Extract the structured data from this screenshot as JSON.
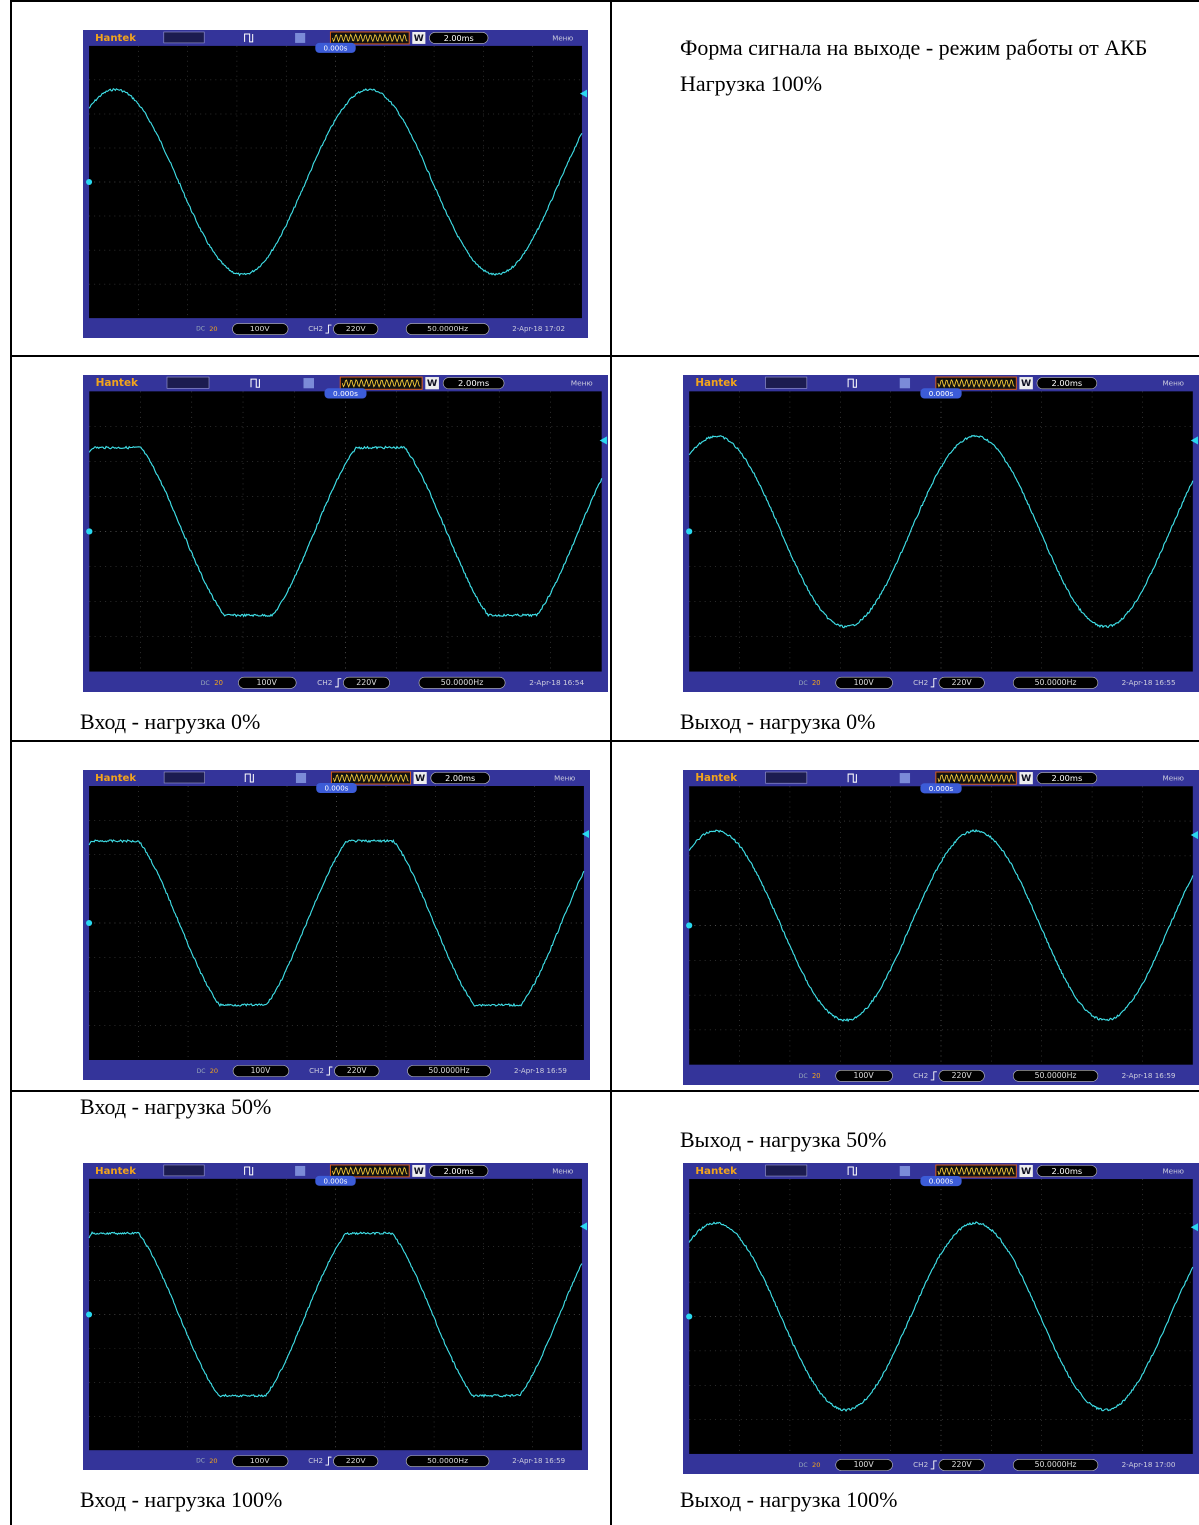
{
  "intro": {
    "lines": [
      "Форма сигнала на выходе - режим работы от АКБ",
      "Нагрузка 100%"
    ]
  },
  "scopes": [
    {
      "brand": "Hantek",
      "mode": "W",
      "timebase": "2.00ms",
      "menu": "Меню",
      "trigger_time": "0.000s",
      "coupling": "DC",
      "bandwidth": "20",
      "ch1_scale": "100V",
      "trigger_channel": "CH2",
      "trigger_level": "220V",
      "frequency": "50.0000Hz",
      "timestamp": "2-Apr-18 17:02"
    },
    {
      "brand": "Hantek",
      "mode": "W",
      "timebase": "2.00ms",
      "menu": "Меню",
      "trigger_time": "0.000s",
      "coupling": "DC",
      "bandwidth": "20",
      "ch1_scale": "100V",
      "trigger_channel": "CH2",
      "trigger_level": "220V",
      "frequency": "50.0000Hz",
      "timestamp": "2-Apr-18 16:54",
      "caption": "Вход - нагрузка 0%"
    },
    {
      "brand": "Hantek",
      "mode": "W",
      "timebase": "2.00ms",
      "menu": "Меню",
      "trigger_time": "0.000s",
      "coupling": "DC",
      "bandwidth": "20",
      "ch1_scale": "100V",
      "trigger_channel": "CH2",
      "trigger_level": "220V",
      "frequency": "50.0000Hz",
      "timestamp": "2-Apr-18 16:55",
      "caption": "Выход - нагрузка 0%"
    },
    {
      "brand": "Hantek",
      "mode": "W",
      "timebase": "2.00ms",
      "menu": "Меню",
      "trigger_time": "0.000s",
      "coupling": "DC",
      "bandwidth": "20",
      "ch1_scale": "100V",
      "trigger_channel": "CH2",
      "trigger_level": "220V",
      "frequency": "50.0000Hz",
      "timestamp": "2-Apr-18 16:59",
      "caption": "Вход - нагрузка 50%"
    },
    {
      "brand": "Hantek",
      "mode": "W",
      "timebase": "2.00ms",
      "menu": "Меню",
      "trigger_time": "0.000s",
      "coupling": "DC",
      "bandwidth": "20",
      "ch1_scale": "100V",
      "trigger_channel": "CH2",
      "trigger_level": "220V",
      "frequency": "50.0000Hz",
      "timestamp": "2-Apr-18 16:59",
      "caption": "Выход - нагрузка 50%"
    },
    {
      "brand": "Hantek",
      "mode": "W",
      "timebase": "2.00ms",
      "menu": "Меню",
      "trigger_time": "0.000s",
      "coupling": "DC",
      "bandwidth": "20",
      "ch1_scale": "100V",
      "trigger_channel": "CH2",
      "trigger_level": "220V",
      "frequency": "50.0000Hz",
      "timestamp": "2-Apr-18 16:59",
      "caption": "Вход - нагрузка 100%"
    },
    {
      "brand": "Hantek",
      "mode": "W",
      "timebase": "2.00ms",
      "menu": "Меню",
      "trigger_time": "0.000s",
      "coupling": "DC",
      "bandwidth": "20",
      "ch1_scale": "100V",
      "trigger_channel": "CH2",
      "trigger_level": "220V",
      "frequency": "50.0000Hz",
      "timestamp": "2-Apr-18 17:00",
      "caption": "Выход - нагрузка 100%"
    }
  ]
}
